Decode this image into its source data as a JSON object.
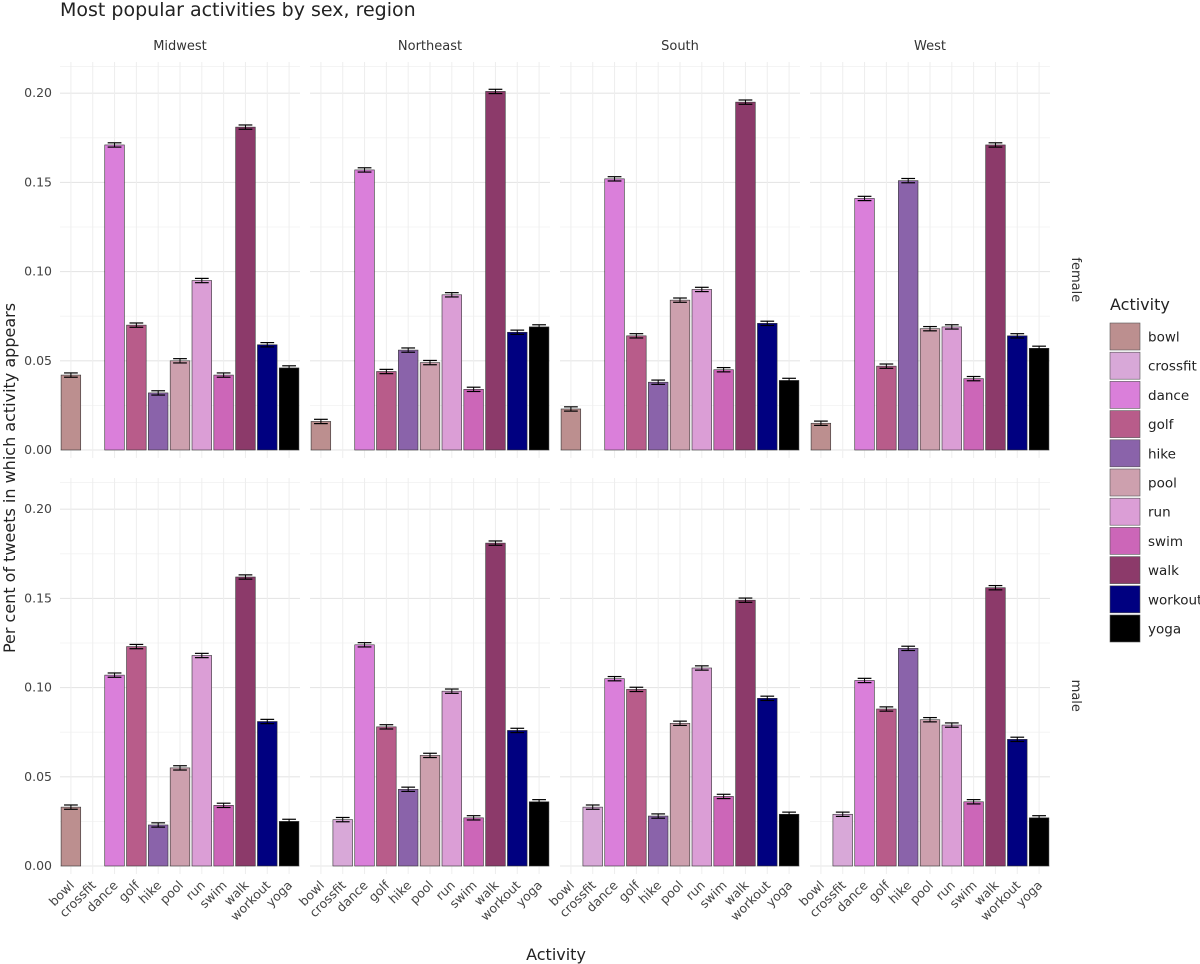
{
  "chart_data": {
    "type": "bar",
    "title": "Most popular activities by sex, region",
    "xlabel": "Activity",
    "ylabel": "Per cent of tweets in which activity appears",
    "ylim": [
      0,
      0.22
    ],
    "yticks": [
      "0.00",
      "0.05",
      "0.10",
      "0.15",
      "0.20"
    ],
    "grid": true,
    "legend": {
      "title": "Activity",
      "placement": "right"
    },
    "categories": [
      "bowl",
      "crossfit",
      "dance",
      "golf",
      "hike",
      "pool",
      "run",
      "swim",
      "walk",
      "workout",
      "yoga"
    ],
    "colors": {
      "bowl": "#BC8F8F",
      "crossfit": "#D8A8D8",
      "dance": "#DA7FDA",
      "golf": "#B85C8A",
      "hike": "#8A63AA",
      "pool": "#CDA0AE",
      "run": "#DB9ED6",
      "swim": "#CC66B8",
      "walk": "#8C3A6A",
      "workout": "#000080",
      "yoga": "#000000"
    },
    "regions": [
      "Midwest",
      "Northeast",
      "South",
      "West"
    ],
    "sexes": [
      "female",
      "male"
    ],
    "panels": [
      {
        "sex": "female",
        "region": "Midwest",
        "values": [
          0.042,
          null,
          0.171,
          0.07,
          0.032,
          0.05,
          0.095,
          0.042,
          0.181,
          0.059,
          0.046
        ]
      },
      {
        "sex": "female",
        "region": "Northeast",
        "values": [
          0.016,
          null,
          0.157,
          0.044,
          0.056,
          0.049,
          0.087,
          0.034,
          0.201,
          0.066,
          0.069
        ]
      },
      {
        "sex": "female",
        "region": "South",
        "values": [
          0.023,
          null,
          0.152,
          0.064,
          0.038,
          0.084,
          0.09,
          0.045,
          0.195,
          0.071,
          0.039
        ]
      },
      {
        "sex": "female",
        "region": "West",
        "values": [
          0.015,
          null,
          0.141,
          0.047,
          0.151,
          0.068,
          0.069,
          0.04,
          0.171,
          0.064,
          0.057
        ]
      },
      {
        "sex": "male",
        "region": "Midwest",
        "values": [
          0.033,
          null,
          0.107,
          0.123,
          0.023,
          0.055,
          0.118,
          0.034,
          0.162,
          0.081,
          0.025
        ]
      },
      {
        "sex": "male",
        "region": "Northeast",
        "values": [
          null,
          0.026,
          0.124,
          0.078,
          0.043,
          0.062,
          0.098,
          0.027,
          0.181,
          0.076,
          0.036
        ]
      },
      {
        "sex": "male",
        "region": "South",
        "values": [
          null,
          0.033,
          0.105,
          0.099,
          0.028,
          0.08,
          0.111,
          0.039,
          0.149,
          0.094,
          0.029
        ]
      },
      {
        "sex": "male",
        "region": "West",
        "values": [
          null,
          0.029,
          0.104,
          0.088,
          0.122,
          0.082,
          0.079,
          0.036,
          0.156,
          0.071,
          0.027
        ]
      }
    ]
  }
}
